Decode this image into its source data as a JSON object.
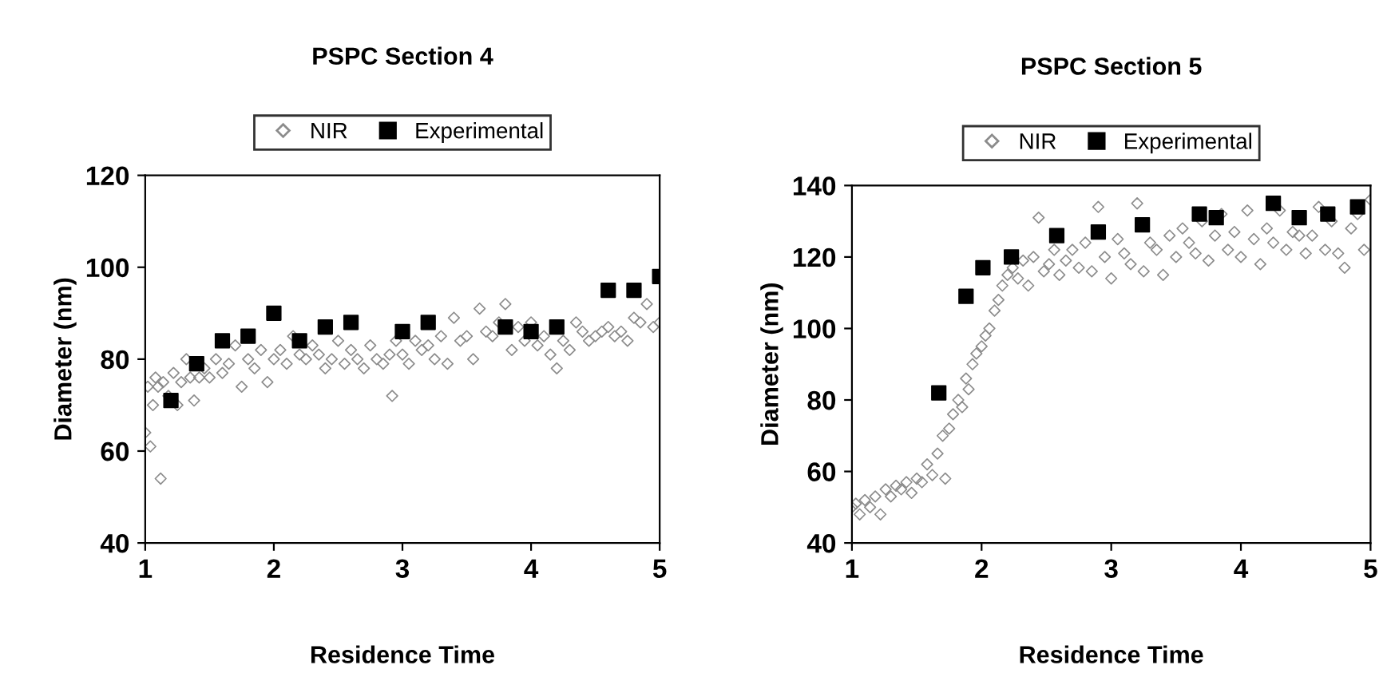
{
  "chart_data": [
    {
      "type": "scatter",
      "title": "PSPC Section 4",
      "xlabel": "Residence Time",
      "ylabel": "Diameter (nm)",
      "xlim": [
        1,
        5
      ],
      "xticks": [
        1,
        2,
        3,
        4,
        5
      ],
      "ylim": [
        40,
        120
      ],
      "yticks": [
        40,
        60,
        80,
        100,
        120
      ],
      "grid": false,
      "legend": "top",
      "series": [
        {
          "name": "NIR",
          "color": "#8c8c8c",
          "marker": "diamond",
          "x": [
            1.0,
            1.02,
            1.04,
            1.06,
            1.08,
            1.1,
            1.12,
            1.14,
            1.18,
            1.22,
            1.25,
            1.28,
            1.32,
            1.35,
            1.38,
            1.42,
            1.46,
            1.5,
            1.55,
            1.6,
            1.65,
            1.7,
            1.75,
            1.8,
            1.85,
            1.9,
            1.95,
            2.0,
            2.05,
            2.1,
            2.15,
            2.2,
            2.25,
            2.3,
            2.35,
            2.4,
            2.45,
            2.5,
            2.55,
            2.6,
            2.65,
            2.7,
            2.75,
            2.8,
            2.85,
            2.9,
            2.92,
            2.95,
            3.0,
            3.05,
            3.1,
            3.15,
            3.2,
            3.25,
            3.3,
            3.35,
            3.4,
            3.45,
            3.5,
            3.55,
            3.6,
            3.65,
            3.7,
            3.75,
            3.8,
            3.85,
            3.9,
            3.95,
            4.0,
            4.05,
            4.1,
            4.15,
            4.2,
            4.25,
            4.3,
            4.35,
            4.4,
            4.45,
            4.5,
            4.55,
            4.6,
            4.65,
            4.7,
            4.75,
            4.8,
            4.85,
            4.9,
            4.95,
            5.0
          ],
          "values": [
            64,
            74,
            61,
            70,
            76,
            74,
            54,
            75,
            72,
            77,
            70,
            75,
            80,
            76,
            71,
            76,
            78,
            76,
            80,
            77,
            79,
            83,
            74,
            80,
            78,
            82,
            75,
            80,
            82,
            79,
            85,
            81,
            80,
            83,
            81,
            78,
            80,
            84,
            79,
            82,
            80,
            78,
            83,
            80,
            79,
            81,
            72,
            84,
            81,
            79,
            84,
            82,
            83,
            80,
            85,
            79,
            89,
            84,
            85,
            80,
            91,
            86,
            85,
            88,
            92,
            82,
            87,
            84,
            88,
            83,
            85,
            81,
            78,
            84,
            82,
            88,
            86,
            84,
            85,
            86,
            87,
            85,
            86,
            84,
            89,
            88,
            92,
            87,
            88
          ]
        },
        {
          "name": "Experimental",
          "color": "#000000",
          "marker": "square",
          "x": [
            1.2,
            1.4,
            1.6,
            1.8,
            2.0,
            2.2,
            2.4,
            2.6,
            3.0,
            3.2,
            3.8,
            4.0,
            4.2,
            4.6,
            4.8,
            5.0
          ],
          "values": [
            71,
            79,
            84,
            85,
            90,
            84,
            87,
            88,
            86,
            88,
            87,
            86,
            87,
            95,
            95,
            98
          ]
        }
      ]
    },
    {
      "type": "scatter",
      "title": "PSPC Section 5",
      "xlabel": "Residence Time",
      "ylabel": "Diameter (nm)",
      "xlim": [
        1,
        5
      ],
      "xticks": [
        1,
        2,
        3,
        4,
        5
      ],
      "ylim": [
        40,
        140
      ],
      "yticks": [
        40,
        60,
        80,
        100,
        120,
        140
      ],
      "grid": false,
      "legend": "top",
      "series": [
        {
          "name": "NIR",
          "color": "#8c8c8c",
          "marker": "diamond",
          "x": [
            1.0,
            1.03,
            1.06,
            1.1,
            1.14,
            1.18,
            1.22,
            1.26,
            1.3,
            1.34,
            1.38,
            1.42,
            1.46,
            1.5,
            1.54,
            1.58,
            1.62,
            1.66,
            1.7,
            1.72,
            1.75,
            1.78,
            1.82,
            1.85,
            1.88,
            1.9,
            1.93,
            1.96,
            2.0,
            2.03,
            2.06,
            2.1,
            2.13,
            2.16,
            2.2,
            2.24,
            2.28,
            2.32,
            2.36,
            2.4,
            2.44,
            2.48,
            2.52,
            2.56,
            2.6,
            2.65,
            2.7,
            2.75,
            2.8,
            2.85,
            2.9,
            2.95,
            3.0,
            3.05,
            3.1,
            3.15,
            3.2,
            3.25,
            3.3,
            3.35,
            3.4,
            3.45,
            3.5,
            3.55,
            3.6,
            3.65,
            3.7,
            3.75,
            3.8,
            3.85,
            3.9,
            3.95,
            4.0,
            4.05,
            4.1,
            4.15,
            4.2,
            4.25,
            4.3,
            4.35,
            4.4,
            4.45,
            4.5,
            4.55,
            4.6,
            4.65,
            4.7,
            4.75,
            4.8,
            4.85,
            4.9,
            4.95,
            5.0
          ],
          "values": [
            50,
            51,
            48,
            52,
            50,
            53,
            48,
            55,
            53,
            56,
            55,
            57,
            54,
            58,
            57,
            62,
            59,
            65,
            70,
            58,
            72,
            76,
            80,
            78,
            86,
            83,
            90,
            93,
            95,
            98,
            100,
            105,
            108,
            112,
            115,
            117,
            114,
            119,
            112,
            120,
            131,
            116,
            118,
            122,
            115,
            119,
            122,
            117,
            124,
            116,
            134,
            120,
            114,
            125,
            121,
            118,
            135,
            116,
            124,
            122,
            115,
            126,
            120,
            128,
            124,
            121,
            130,
            119,
            126,
            132,
            122,
            127,
            120,
            133,
            125,
            118,
            128,
            124,
            133,
            122,
            127,
            126,
            121,
            126,
            134,
            122,
            130,
            121,
            117,
            128,
            132,
            122,
            136
          ]
        },
        {
          "name": "Experimental",
          "color": "#000000",
          "marker": "square",
          "x": [
            1.67,
            1.88,
            2.01,
            2.23,
            2.58,
            2.9,
            3.24,
            3.68,
            3.81,
            4.25,
            4.45,
            4.67,
            4.9
          ],
          "values": [
            82,
            109,
            117,
            120,
            126,
            127,
            129,
            132,
            131,
            135,
            131,
            132,
            134
          ]
        }
      ]
    }
  ]
}
